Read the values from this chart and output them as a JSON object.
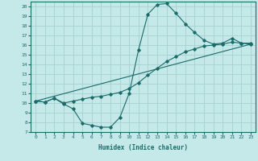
{
  "title": "",
  "xlabel": "Humidex (Indice chaleur)",
  "xlim": [
    -0.5,
    23.5
  ],
  "ylim": [
    7,
    20.5
  ],
  "xticks": [
    0,
    1,
    2,
    3,
    4,
    5,
    6,
    7,
    8,
    9,
    10,
    11,
    12,
    13,
    14,
    15,
    16,
    17,
    18,
    19,
    20,
    21,
    22,
    23
  ],
  "yticks": [
    7,
    8,
    9,
    10,
    11,
    12,
    13,
    14,
    15,
    16,
    17,
    18,
    19,
    20
  ],
  "bg_color": "#c5e8e8",
  "line_color": "#1a6b6b",
  "grid_color": "#a8d0d0",
  "line1_x": [
    0,
    1,
    2,
    3,
    4,
    5,
    6,
    7,
    8,
    9,
    10,
    11,
    12,
    13,
    14,
    15,
    16,
    17,
    18,
    19,
    20,
    21,
    22,
    23
  ],
  "line1_y": [
    10.2,
    10.1,
    10.5,
    9.9,
    9.4,
    7.9,
    7.7,
    7.5,
    7.5,
    8.5,
    11.0,
    15.5,
    19.2,
    20.2,
    20.3,
    19.3,
    18.2,
    17.3,
    16.5,
    16.1,
    16.2,
    16.7,
    16.2,
    16.1
  ],
  "line2_x": [
    0,
    1,
    2,
    3,
    4,
    5,
    6,
    7,
    8,
    9,
    10,
    11,
    12,
    13,
    14,
    15,
    16,
    17,
    18,
    19,
    20,
    21,
    22,
    23
  ],
  "line2_y": [
    10.2,
    10.1,
    10.5,
    10.0,
    10.2,
    10.4,
    10.6,
    10.7,
    10.9,
    11.1,
    11.5,
    12.1,
    12.9,
    13.6,
    14.3,
    14.8,
    15.3,
    15.6,
    15.9,
    16.0,
    16.1,
    16.3,
    16.2,
    16.2
  ],
  "line3_x": [
    0,
    23
  ],
  "line3_y": [
    10.2,
    16.1
  ]
}
